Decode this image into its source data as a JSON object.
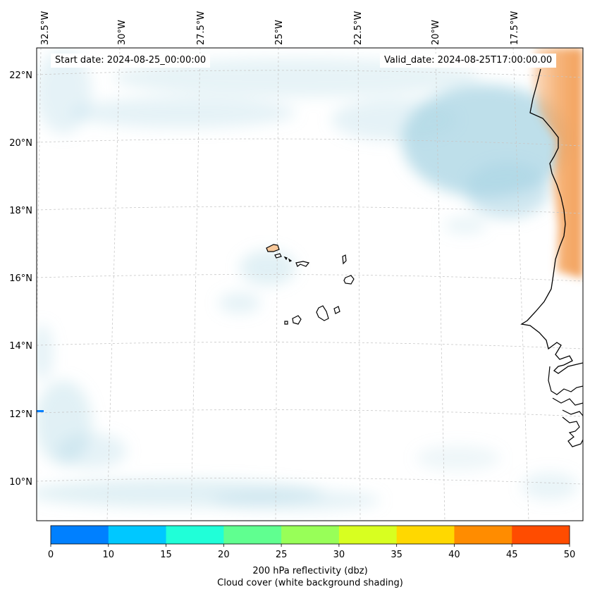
{
  "map": {
    "start_label": "Start date: 2024-08-25_00:00:00",
    "valid_label": "Valid_date: 2024-08-25T17:00:00.00",
    "lon_ticks": [
      "32.5°W",
      "30°W",
      "27.5°W",
      "25°W",
      "22.5°W",
      "20°W",
      "17.5°W"
    ],
    "lat_ticks": [
      "22°N",
      "20°N",
      "18°N",
      "16°N",
      "14°N",
      "12°N",
      "10°N"
    ],
    "coastline_color": "#000000",
    "cloud_color": "#a8d4e3",
    "warm_color": "#f4a25a"
  },
  "colorbar": {
    "ticks": [
      "0",
      "10",
      "15",
      "20",
      "25",
      "30",
      "35",
      "40",
      "45",
      "50"
    ],
    "colors": [
      "#0080ff",
      "#00c8ff",
      "#20ffd8",
      "#60ff90",
      "#98ff58",
      "#d8ff20",
      "#ffd800",
      "#ff8c00",
      "#ff4c00"
    ],
    "label_line1": "200 hPa reflectivity (dbz)",
    "label_line2": "Cloud cover (white background shading)"
  }
}
